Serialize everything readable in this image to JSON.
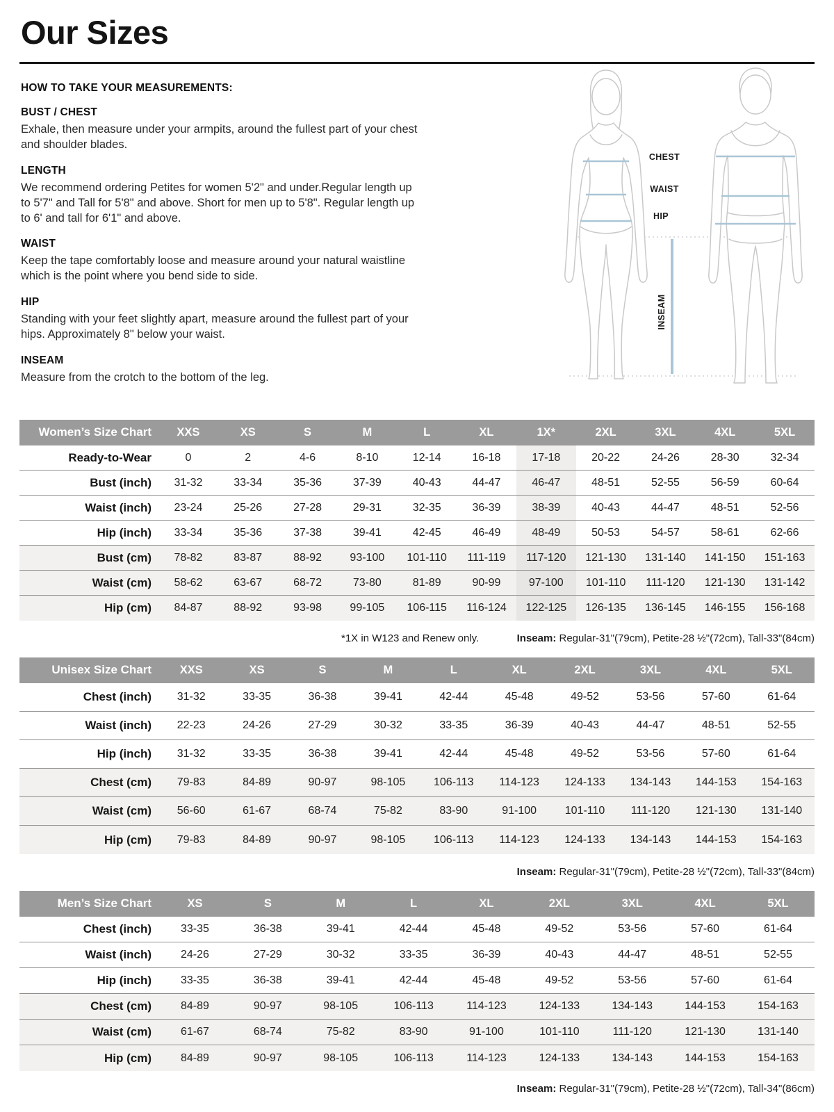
{
  "page": {
    "title": "Our Sizes"
  },
  "instructions": {
    "heading": "HOW TO TAKE YOUR MEASUREMENTS:",
    "sections": [
      {
        "label": "BUST / CHEST",
        "text": "Exhale, then measure under your armpits, around the fullest part of your chest\nand shoulder blades."
      },
      {
        "label": "LENGTH",
        "text": "We recommend ordering Petites for women 5'2\" and under.Regular length up\nto 5'7\" and Tall for 5'8\" and above. Short for men up to 5'8\". Regular length up\nto 6' and tall for 6'1\" and above."
      },
      {
        "label": "WAIST",
        "text": "Keep the tape comfortably loose and measure around your natural waistline\nwhich is the point where you bend side to side."
      },
      {
        "label": "HIP",
        "text": "Standing with your feet slightly apart, measure around the fullest part of your\nhips. Approximately 8\" below your waist."
      },
      {
        "label": "INSEAM",
        "text": "Measure from the crotch to the bottom of the leg."
      }
    ]
  },
  "diagram": {
    "labels": {
      "chest": "CHEST",
      "waist": "WAIST",
      "hip": "HIP",
      "inseam": "INSEAM"
    },
    "line_color": "#a9c6d6",
    "outline_color": "#c9c9c9"
  },
  "colors": {
    "table_header_bg": "#9b9b9b",
    "alt_row_bg": "#f2f1ef",
    "highlight_col_bg": "#efeeec"
  },
  "tables": [
    {
      "title": "Women’s Size Chart",
      "columns": [
        "XXS",
        "XS",
        "S",
        "M",
        "L",
        "XL",
        "1X*",
        "2XL",
        "3XL",
        "4XL",
        "5XL"
      ],
      "highlight_column": "1X*",
      "rows": [
        {
          "label": "Ready-to-Wear",
          "alt": false,
          "values": [
            "0",
            "2",
            "4-6",
            "8-10",
            "12-14",
            "16-18",
            "17-18",
            "20-22",
            "24-26",
            "28-30",
            "32-34"
          ]
        },
        {
          "label": "Bust (inch)",
          "alt": false,
          "values": [
            "31-32",
            "33-34",
            "35-36",
            "37-39",
            "40-43",
            "44-47",
            "46-47",
            "48-51",
            "52-55",
            "56-59",
            "60-64"
          ]
        },
        {
          "label": "Waist (inch)",
          "alt": false,
          "values": [
            "23-24",
            "25-26",
            "27-28",
            "29-31",
            "32-35",
            "36-39",
            "38-39",
            "40-43",
            "44-47",
            "48-51",
            "52-56"
          ]
        },
        {
          "label": "Hip (inch)",
          "alt": false,
          "values": [
            "33-34",
            "35-36",
            "37-38",
            "39-41",
            "42-45",
            "46-49",
            "48-49",
            "50-53",
            "54-57",
            "58-61",
            "62-66"
          ]
        },
        {
          "label": "Bust (cm)",
          "alt": true,
          "values": [
            "78-82",
            "83-87",
            "88-92",
            "93-100",
            "101-110",
            "111-119",
            "117-120",
            "121-130",
            "131-140",
            "141-150",
            "151-163"
          ]
        },
        {
          "label": "Waist (cm)",
          "alt": true,
          "values": [
            "58-62",
            "63-67",
            "68-72",
            "73-80",
            "81-89",
            "90-99",
            "97-100",
            "101-110",
            "111-120",
            "121-130",
            "131-142"
          ]
        },
        {
          "label": "Hip (cm)",
          "alt": true,
          "values": [
            "84-87",
            "88-92",
            "93-98",
            "99-105",
            "106-115",
            "116-124",
            "122-125",
            "126-135",
            "136-145",
            "146-155",
            "156-168"
          ]
        }
      ],
      "footnote_left": "*1X in W123 and Renew only.",
      "inseam_label": "Inseam:",
      "inseam_text": " Regular-31\"(79cm), Petite-28 ½\"(72cm), Tall-33\"(84cm)"
    },
    {
      "title": "Unisex Size Chart",
      "columns": [
        "XXS",
        "XS",
        "S",
        "M",
        "L",
        "XL",
        "2XL",
        "3XL",
        "4XL",
        "5XL"
      ],
      "highlight_column": "",
      "rows": [
        {
          "label": "Chest (inch)",
          "alt": false,
          "values": [
            "31-32",
            "33-35",
            "36-38",
            "39-41",
            "42-44",
            "45-48",
            "49-52",
            "53-56",
            "57-60",
            "61-64"
          ]
        },
        {
          "label": "Waist (inch)",
          "alt": false,
          "values": [
            "22-23",
            "24-26",
            "27-29",
            "30-32",
            "33-35",
            "36-39",
            "40-43",
            "44-47",
            "48-51",
            "52-55"
          ]
        },
        {
          "label": "Hip (inch)",
          "alt": false,
          "values": [
            "31-32",
            "33-35",
            "36-38",
            "39-41",
            "42-44",
            "45-48",
            "49-52",
            "53-56",
            "57-60",
            "61-64"
          ]
        },
        {
          "label": "Chest (cm)",
          "alt": true,
          "values": [
            "79-83",
            "84-89",
            "90-97",
            "98-105",
            "106-113",
            "114-123",
            "124-133",
            "134-143",
            "144-153",
            "154-163"
          ]
        },
        {
          "label": "Waist (cm)",
          "alt": true,
          "values": [
            "56-60",
            "61-67",
            "68-74",
            "75-82",
            "83-90",
            "91-100",
            "101-110",
            "111-120",
            "121-130",
            "131-140"
          ]
        },
        {
          "label": "Hip (cm)",
          "alt": true,
          "values": [
            "79-83",
            "84-89",
            "90-97",
            "98-105",
            "106-113",
            "114-123",
            "124-133",
            "134-143",
            "144-153",
            "154-163"
          ]
        }
      ],
      "footnote_left": "",
      "inseam_label": "Inseam:",
      "inseam_text": " Regular-31\"(79cm), Petite-28 ½\"(72cm), Tall-33\"(84cm)"
    },
    {
      "title": "Men’s Size Chart",
      "columns": [
        "XS",
        "S",
        "M",
        "L",
        "XL",
        "2XL",
        "3XL",
        "4XL",
        "5XL"
      ],
      "highlight_column": "",
      "rows": [
        {
          "label": "Chest (inch)",
          "alt": false,
          "values": [
            "33-35",
            "36-38",
            "39-41",
            "42-44",
            "45-48",
            "49-52",
            "53-56",
            "57-60",
            "61-64"
          ]
        },
        {
          "label": "Waist (inch)",
          "alt": false,
          "values": [
            "24-26",
            "27-29",
            "30-32",
            "33-35",
            "36-39",
            "40-43",
            "44-47",
            "48-51",
            "52-55"
          ]
        },
        {
          "label": "Hip (inch)",
          "alt": false,
          "values": [
            "33-35",
            "36-38",
            "39-41",
            "42-44",
            "45-48",
            "49-52",
            "53-56",
            "57-60",
            "61-64"
          ]
        },
        {
          "label": "Chest (cm)",
          "alt": true,
          "values": [
            "84-89",
            "90-97",
            "98-105",
            "106-113",
            "114-123",
            "124-133",
            "134-143",
            "144-153",
            "154-163"
          ]
        },
        {
          "label": "Waist (cm)",
          "alt": true,
          "values": [
            "61-67",
            "68-74",
            "75-82",
            "83-90",
            "91-100",
            "101-110",
            "111-120",
            "121-130",
            "131-140"
          ]
        },
        {
          "label": "Hip (cm)",
          "alt": true,
          "values": [
            "84-89",
            "90-97",
            "98-105",
            "106-113",
            "114-123",
            "124-133",
            "134-143",
            "144-153",
            "154-163"
          ]
        }
      ],
      "footnote_left": "",
      "inseam_label": "Inseam:",
      "inseam_text": " Regular-31\"(79cm), Petite-28 ½\"(72cm), Tall-34\"(86cm)"
    }
  ]
}
